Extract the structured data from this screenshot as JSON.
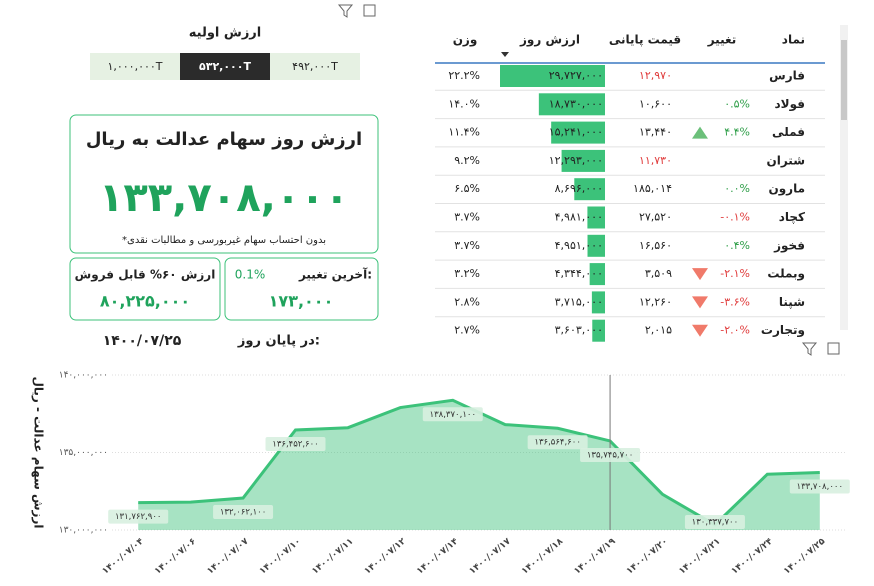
{
  "top_left": {
    "title": "ارزش اولیه",
    "options": [
      "۱,۰۰۰,۰۰۰T",
      "۵۳۲,۰۰۰T",
      "۴۹۲,۰۰۰T"
    ]
  },
  "card": {
    "title": "ارزش روز سهام عدالت به ریال",
    "value": "۱۳۳,۷۰۸,۰۰۰",
    "note": "*بدون احتساب سهام غیربورسی و مطالبات نقدی"
  },
  "kpi_change": {
    "label": "آخرین تغییر:",
    "percent": "0.1%",
    "value": "۱۷۳,۰۰۰"
  },
  "kpi_sell": {
    "label": "ارزش ۶۰% قابل فروش",
    "value": "۸۰,۲۲۵,۰۰۰"
  },
  "date": {
    "label": "در پایان روز:",
    "value": "۱۴۰۰/۰۷/۲۵"
  },
  "table": {
    "headers": [
      "نماد",
      "تغییر",
      "قیمت پایانی",
      "ارزش روز",
      "وزن"
    ],
    "rows": [
      {
        "symbol": "فارس",
        "close": "۱۲,۹۷۰",
        "close_color": "#e03b3b",
        "value": 29727000,
        "value_label": "۲۹,۷۲۷,۰۰۰",
        "weight": "۲۲.۲%"
      },
      {
        "symbol": "فولاد",
        "change": "۰.۵%",
        "change_color": "#2e9e48",
        "close": "۱۰,۶۰۰",
        "value": 18730000,
        "value_label": "۱۸,۷۳۰,۰۰۰",
        "weight": "۱۴.۰%"
      },
      {
        "symbol": "فملی",
        "change": "۴.۴%",
        "change_color": "#2e9e48",
        "icon": "up",
        "close": "۱۳,۴۴۰",
        "value": 15241000,
        "value_label": "۱۵,۲۴۱,۰۰۰",
        "weight": "۱۱.۴%"
      },
      {
        "symbol": "شتران",
        "close": "۱۱,۷۳۰",
        "close_color": "#e03b3b",
        "value": 12293000,
        "value_label": "۱۲,۲۹۳,۰۰۰",
        "weight": "۹.۲%"
      },
      {
        "symbol": "مارون",
        "change": "۰.۰%",
        "change_color": "#2e9e48",
        "close": "۱۸۵,۰۱۴",
        "value": 8696000,
        "value_label": "۸,۶۹۶,۰۰۰",
        "weight": "۶.۵%"
      },
      {
        "symbol": "کچاد",
        "change": "-۰.۱%",
        "change_color": "#e03b3b",
        "close": "۲۷,۵۲۰",
        "value": 4981000,
        "value_label": "۴,۹۸۱,۰۰۰",
        "weight": "۳.۷%"
      },
      {
        "symbol": "فخوز",
        "change": "۰.۴%",
        "change_color": "#2e9e48",
        "close": "۱۶,۵۶۰",
        "value": 4951000,
        "value_label": "۴,۹۵۱,۰۰۰",
        "weight": "۳.۷%"
      },
      {
        "symbol": "وبملت",
        "change": "-۲.۱%",
        "change_color": "#e03b3b",
        "icon": "down",
        "close": "۳,۵۰۹",
        "value": 4344000,
        "value_label": "۴,۳۴۴,۰۰۰",
        "weight": "۳.۲%"
      },
      {
        "symbol": "شپنا",
        "change": "-۳.۶%",
        "change_color": "#e03b3b",
        "icon": "down",
        "close": "۱۲,۲۶۰",
        "value": 3715000,
        "value_label": "۳,۷۱۵,۰۰۰",
        "weight": "۲.۸%"
      },
      {
        "symbol": "وتجارت",
        "change": "-۲.۰%",
        "change_color": "#e03b3b",
        "icon": "down",
        "close": "۲,۰۱۵",
        "value": 3603000,
        "value_label": "۳,۶۰۳,۰۰۰",
        "weight": "۲.۷%"
      }
    ]
  },
  "chart_data": {
    "type": "area",
    "y_label": "ارزش سهام عدالت - ریال",
    "color": "#3cc27a",
    "categories": [
      "۱۴۰۰/۰۷/۰۴",
      "۱۴۰۰/۰۷/۰۶",
      "۱۴۰۰/۰۷/۰۷",
      "۱۴۰۰/۰۷/۱۰",
      "۱۴۰۰/۰۷/۱۱",
      "۱۴۰۰/۰۷/۱۲",
      "۱۴۰۰/۰۷/۱۴",
      "۱۴۰۰/۰۷/۱۷",
      "۱۴۰۰/۰۷/۱۸",
      "۱۴۰۰/۰۷/۱۹",
      "۱۴۰۰/۰۷/۲۰",
      "۱۴۰۰/۰۷/۲۱",
      "۱۴۰۰/۰۷/۲۴",
      "۱۴۰۰/۰۷/۲۵"
    ],
    "values": [
      131762900,
      131800000,
      132062100,
      136452600,
      136600000,
      137900000,
      138370100,
      136800000,
      136564600,
      135745700,
      132300000,
      130337700,
      133600000,
      133708000
    ],
    "value_labels": [
      "۱۳۱,۷۶۲,۹۰۰",
      null,
      "۱۳۲,۰۶۲,۱۰۰",
      "۱۳۶,۴۵۲,۶۰۰",
      null,
      null,
      "۱۳۸,۳۷۰,۱۰۰",
      null,
      "۱۳۶,۵۶۴,۶۰۰",
      "۱۳۵,۷۴۵,۷۰۰",
      null,
      "۱۳۰,۳۳۷,۷۰۰",
      null,
      "۱۳۳,۷۰۸,۰۰۰"
    ],
    "ylim": [
      130000000,
      140000000
    ],
    "yticks": [
      {
        "value": 130000000,
        "label": "۱۳۰,۰۰۰,۰۰۰"
      },
      {
        "value": 135000000,
        "label": "۱۳۵,۰۰۰,۰۰۰"
      },
      {
        "value": 140000000,
        "label": "۱۴۰,۰۰۰,۰۰۰"
      }
    ],
    "grid": true,
    "highlight_index": 9
  }
}
